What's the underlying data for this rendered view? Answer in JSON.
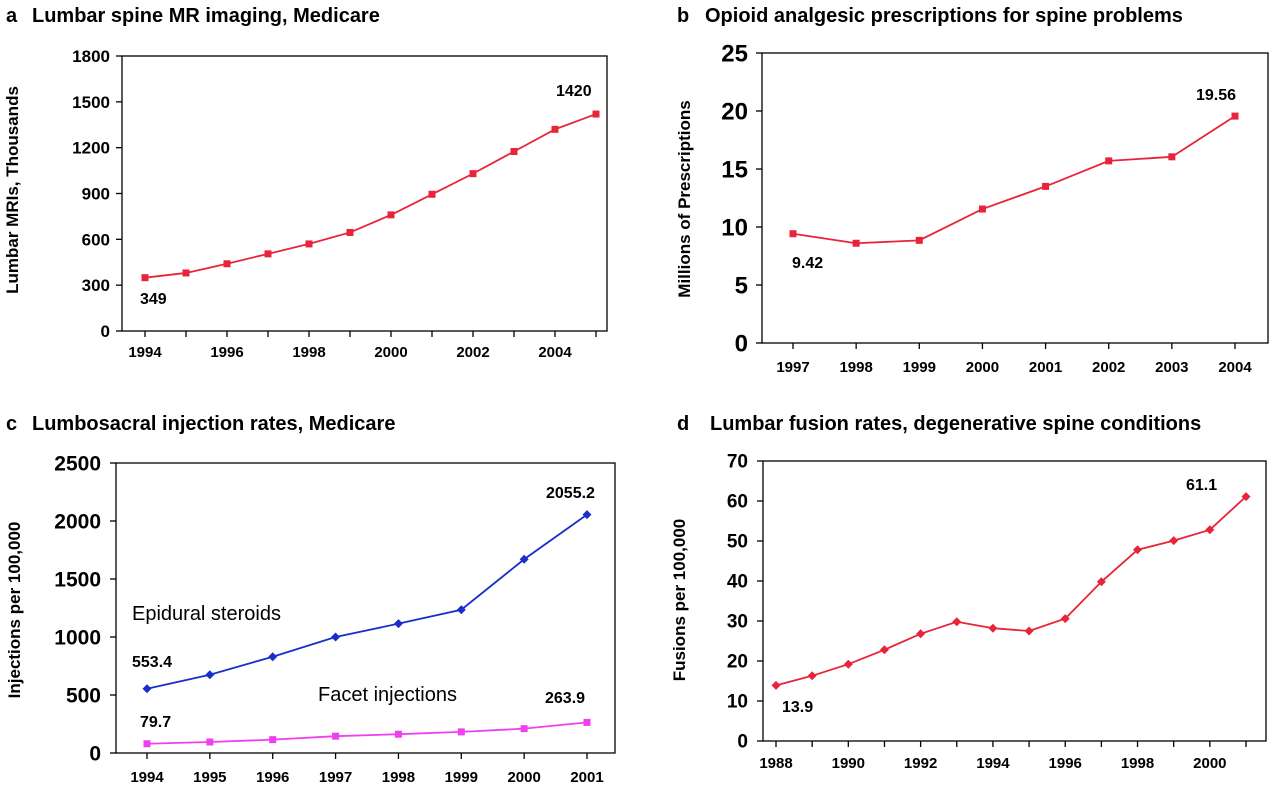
{
  "colors": {
    "red": "#e8243a",
    "blue": "#1a2ec8",
    "pink": "#ee40ee"
  },
  "chart_data": [
    {
      "type": "line",
      "panel": "a",
      "title": "Lumbar spine MR imaging, Medicare",
      "ylabel": "Lumbar MRIs, Thousands",
      "xlabel": "",
      "x": [
        1994,
        1995,
        1996,
        1997,
        1998,
        1999,
        2000,
        2001,
        2002,
        2003,
        2004,
        2005
      ],
      "xticks": [
        "1994",
        "1996",
        "1998",
        "2000",
        "2002",
        "2004"
      ],
      "yticks": [
        "0",
        "300",
        "600",
        "900",
        "1200",
        "1500",
        "1800"
      ],
      "ylim": [
        0,
        1800
      ],
      "grid": false,
      "series": [
        {
          "values": [
            349,
            380,
            440,
            505,
            570,
            645,
            760,
            895,
            1030,
            1175,
            1320,
            1420
          ],
          "color": "#e8243a",
          "marker": "square"
        }
      ],
      "data_labels": [
        {
          "text": "349"
        },
        {
          "text": "1420"
        }
      ]
    },
    {
      "type": "line",
      "panel": "b",
      "title": "Opioid analgesic prescriptions for spine problems",
      "ylabel": "Millions of Prescriptions",
      "xlabel": "",
      "categories": [
        "1997",
        "1998",
        "1999",
        "2000",
        "2001",
        "2002",
        "2003",
        "2004"
      ],
      "yticks": [
        "0",
        "5",
        "10",
        "15",
        "20",
        "25"
      ],
      "ylim": [
        0,
        25
      ],
      "grid": false,
      "series": [
        {
          "values": [
            9.42,
            8.6,
            8.85,
            11.55,
            13.5,
            15.7,
            16.05,
            19.56
          ],
          "color": "#e8243a",
          "marker": "square"
        }
      ],
      "data_labels": [
        {
          "text": "9.42"
        },
        {
          "text": "19.56"
        }
      ]
    },
    {
      "type": "line",
      "panel": "c",
      "title": "Lumbosacral injection rates, Medicare",
      "ylabel": "Injections per 100,000",
      "xlabel": "",
      "categories": [
        "1994",
        "1995",
        "1996",
        "1997",
        "1998",
        "1999",
        "2000",
        "2001"
      ],
      "yticks": [
        "0",
        "500",
        "1000",
        "1500",
        "2000",
        "2500"
      ],
      "ylim": [
        0,
        2500
      ],
      "grid": false,
      "series": [
        {
          "name": "Epidural steroids",
          "values": [
            553.4,
            675,
            830,
            1000,
            1115,
            1235,
            1670,
            2055.2
          ],
          "color": "#1a2ec8",
          "marker": "diamond"
        },
        {
          "name": "Facet injections",
          "values": [
            79.7,
            95,
            115,
            145,
            162,
            182,
            210,
            263.9
          ],
          "color": "#ee40ee",
          "marker": "square"
        }
      ],
      "data_labels": [
        {
          "text": "553.4"
        },
        {
          "text": "2055.2"
        },
        {
          "text": "79.7"
        },
        {
          "text": "263.9"
        }
      ]
    },
    {
      "type": "line",
      "panel": "d",
      "title": "Lumbar fusion rates, degenerative spine conditions",
      "ylabel": "Fusions per 100,000",
      "xlabel": "",
      "x": [
        1988,
        1989,
        1990,
        1991,
        1992,
        1993,
        1994,
        1995,
        1996,
        1997,
        1998,
        1999,
        2000,
        2001
      ],
      "xticks": [
        "1988",
        "1990",
        "1992",
        "1994",
        "1996",
        "1998",
        "2000"
      ],
      "yticks": [
        "0",
        "10",
        "20",
        "30",
        "40",
        "50",
        "60",
        "70"
      ],
      "ylim": [
        0,
        70
      ],
      "grid": false,
      "series": [
        {
          "values": [
            13.9,
            16.3,
            19.2,
            22.8,
            26.8,
            29.8,
            28.2,
            27.5,
            30.6,
            39.8,
            47.8,
            50.1,
            52.8,
            61.1
          ],
          "color": "#e8243a",
          "marker": "diamond"
        }
      ],
      "data_labels": [
        {
          "text": "13.9"
        },
        {
          "text": "61.1"
        }
      ]
    }
  ]
}
